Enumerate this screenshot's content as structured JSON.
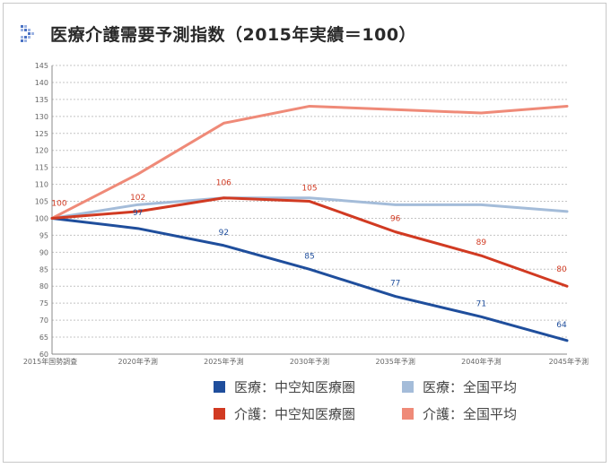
{
  "title": "医療介護需要予測指数（2015年実績＝100）",
  "chart_data": {
    "type": "line",
    "categories": [
      "2015年国勢調査",
      "2020年予測",
      "2025年予測",
      "2030年予測",
      "2035年予測",
      "2040年予測",
      "2045年予測"
    ],
    "ylim": [
      60,
      145
    ],
    "yticks": [
      60,
      65,
      70,
      75,
      80,
      85,
      90,
      95,
      100,
      105,
      110,
      115,
      120,
      125,
      130,
      135,
      140,
      145
    ],
    "grid": true,
    "series": [
      {
        "name": "医療：中空知医療圏",
        "color": "#1f4e9c",
        "values": [
          100,
          97,
          92,
          85,
          77,
          71,
          64
        ],
        "labels": [
          "",
          "97",
          "92",
          "85",
          "77",
          "71",
          "64"
        ]
      },
      {
        "name": "医療：全国平均",
        "color": "#a4bcd9",
        "values": [
          100,
          104,
          106,
          106,
          104,
          104,
          102
        ],
        "labels": [
          "",
          "",
          "",
          "",
          "",
          "",
          ""
        ]
      },
      {
        "name": "介護：中空知医療圏",
        "color": "#d13a22",
        "values": [
          100,
          102,
          106,
          105,
          96,
          89,
          80
        ],
        "labels": [
          "100",
          "102",
          "106",
          "105",
          "96",
          "89",
          "80"
        ]
      },
      {
        "name": "介護：全国平均",
        "color": "#ef8a78",
        "values": [
          100,
          113,
          128,
          133,
          132,
          131,
          133
        ],
        "labels": [
          "",
          "",
          "",
          "",
          "",
          "",
          ""
        ]
      }
    ]
  },
  "legend": {
    "rows": [
      [
        {
          "label": "医療：中空知医療圏",
          "color": "#1f4e9c"
        },
        {
          "label": "医療：全国平均",
          "color": "#a4bcd9"
        }
      ],
      [
        {
          "label": "介護：中空知医療圏",
          "color": "#d13a22"
        },
        {
          "label": "介護：全国平均",
          "color": "#ef8a78"
        }
      ]
    ]
  }
}
